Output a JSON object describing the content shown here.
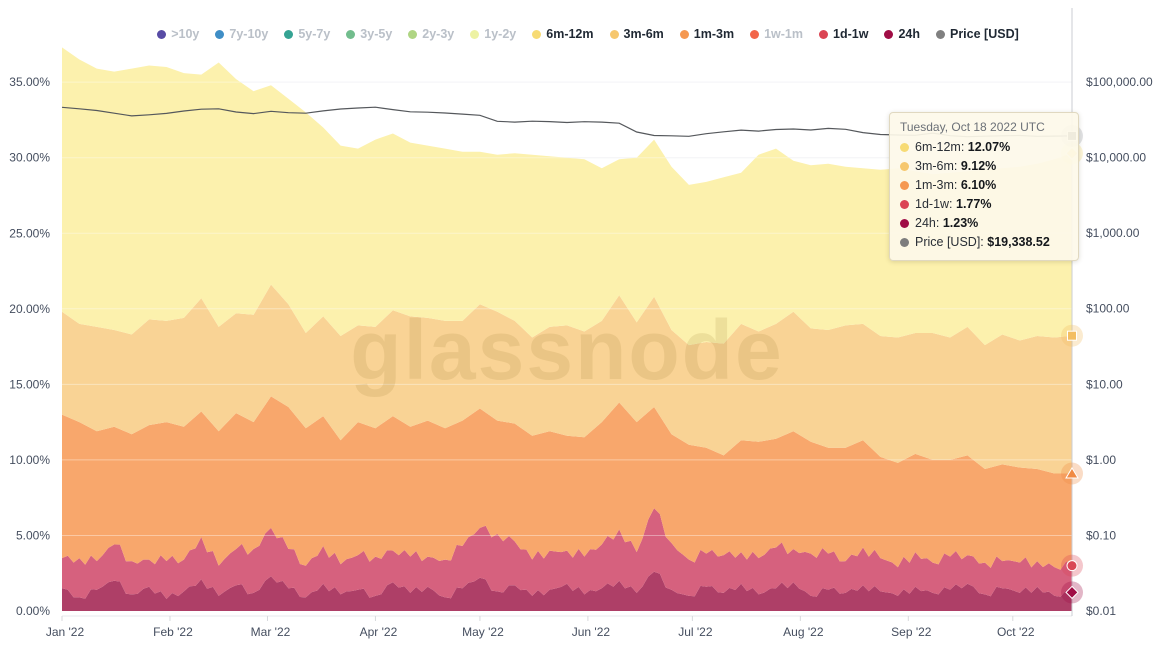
{
  "legend": {
    "items": [
      {
        "label": ">10y",
        "dot": "#584CA5",
        "active": false
      },
      {
        "label": "7y-10y",
        "dot": "#3F8EC6",
        "active": false
      },
      {
        "label": "5y-7y",
        "dot": "#35A393",
        "active": false
      },
      {
        "label": "3y-5y",
        "dot": "#72BD8D",
        "active": false
      },
      {
        "label": "2y-3y",
        "dot": "#AFD583",
        "active": false
      },
      {
        "label": "1y-2y",
        "dot": "#EDF2A3",
        "active": false
      },
      {
        "label": "6m-12m",
        "dot": "#F7DB74",
        "active": true
      },
      {
        "label": "3m-6m",
        "dot": "#F6C76E",
        "active": true
      },
      {
        "label": "1m-3m",
        "dot": "#F59851",
        "active": true
      },
      {
        "label": "1w-1m",
        "dot": "#F2664A",
        "active": false
      },
      {
        "label": "1d-1w",
        "dot": "#DB4453",
        "active": true
      },
      {
        "label": "24h",
        "dot": "#A00D45",
        "active": true
      },
      {
        "label": "Price [USD]",
        "dot": "#808080",
        "active": true
      }
    ]
  },
  "tooltip": {
    "title": "Tuesday, Oct 18 2022 UTC",
    "rows": [
      {
        "label": "6m-12m",
        "value": "12.07%",
        "dot": "#F7DB74"
      },
      {
        "label": "3m-6m",
        "value": "9.12%",
        "dot": "#F6C76E"
      },
      {
        "label": "1m-3m",
        "value": "6.10%",
        "dot": "#F59851"
      },
      {
        "label": "1d-1w",
        "value": "1.77%",
        "dot": "#DB4453"
      },
      {
        "label": "24h",
        "value": "1.23%",
        "dot": "#A00D45"
      },
      {
        "label": "Price [USD]",
        "value": "$19,338.52",
        "dot": "#7D7D7D"
      }
    ]
  },
  "watermark": "glassnode",
  "chart_data": {
    "type": "area",
    "stacked": true,
    "x_unit": "days since Jan 1 2022, through Oct 18 2022",
    "x_days": [
      0,
      5,
      10,
      15,
      20,
      25,
      30,
      35,
      40,
      45,
      50,
      55,
      60,
      65,
      70,
      75,
      80,
      85,
      90,
      95,
      100,
      105,
      110,
      115,
      120,
      125,
      130,
      135,
      140,
      145,
      150,
      155,
      160,
      165,
      170,
      175,
      180,
      185,
      190,
      195,
      200,
      205,
      210,
      215,
      220,
      225,
      230,
      235,
      240,
      245,
      250,
      255,
      260,
      265,
      270,
      275,
      280,
      285,
      290
    ],
    "series": [
      {
        "name": "24h",
        "fill": "#AE3F67",
        "values": [
          1.5,
          0.9,
          1.4,
          2.0,
          1.1,
          1.6,
          0.8,
          1.3,
          2.1,
          1.0,
          1.7,
          1.2,
          2.3,
          1.5,
          0.9,
          1.8,
          1.1,
          1.4,
          1.0,
          1.9,
          1.2,
          1.6,
          0.9,
          1.5,
          2.2,
          1.3,
          1.7,
          1.0,
          1.4,
          1.8,
          1.1,
          1.5,
          2.0,
          1.2,
          2.6,
          1.4,
          1.0,
          1.6,
          1.2,
          1.8,
          1.1,
          1.5,
          1.9,
          1.0,
          1.4,
          1.2,
          1.7,
          1.3,
          1.0,
          1.6,
          1.2,
          1.4,
          1.8,
          1.1,
          1.5,
          1.2,
          1.6,
          1.0,
          1.23
        ]
      },
      {
        "name": "1d-1w",
        "fill": "#D6617E",
        "values": [
          2.0,
          2.6,
          1.9,
          2.4,
          2.2,
          1.8,
          2.5,
          2.1,
          2.8,
          2.0,
          2.4,
          2.9,
          3.2,
          2.6,
          2.1,
          2.5,
          2.0,
          2.3,
          2.6,
          2.1,
          2.4,
          2.0,
          2.5,
          2.8,
          3.3,
          3.8,
          2.9,
          2.4,
          2.6,
          2.2,
          2.5,
          2.9,
          3.4,
          2.7,
          4.2,
          3.1,
          2.4,
          2.2,
          2.5,
          2.1,
          2.4,
          2.7,
          2.2,
          2.8,
          2.4,
          2.1,
          2.5,
          2.2,
          1.9,
          2.3,
          2.0,
          2.2,
          1.9,
          2.1,
          1.8,
          2.0,
          1.7,
          1.9,
          1.77
        ]
      },
      {
        "name": "1m-3m",
        "fill": "#F8A76C",
        "values": [
          9.5,
          9.0,
          8.6,
          7.8,
          8.4,
          8.9,
          9.2,
          8.8,
          8.3,
          8.9,
          9.0,
          8.4,
          8.7,
          9.4,
          9.1,
          8.6,
          8.2,
          8.8,
          8.5,
          8.9,
          8.6,
          9.0,
          8.7,
          8.3,
          7.9,
          7.5,
          7.8,
          8.2,
          7.9,
          7.6,
          7.9,
          8.1,
          8.4,
          8.6,
          6.7,
          7.2,
          7.6,
          7.0,
          6.6,
          7.4,
          7.7,
          7.2,
          7.8,
          7.4,
          7.0,
          7.5,
          7.1,
          6.7,
          6.9,
          6.5,
          6.8,
          6.4,
          6.6,
          6.2,
          6.4,
          6.3,
          6.1,
          6.2,
          6.1
        ]
      },
      {
        "name": "3m-6m",
        "fill": "#F9D395",
        "values": [
          6.8,
          6.5,
          6.9,
          6.4,
          6.6,
          7.0,
          6.7,
          7.2,
          7.5,
          6.9,
          6.6,
          7.1,
          7.4,
          6.8,
          6.3,
          6.6,
          6.9,
          6.4,
          6.7,
          7.0,
          7.3,
          6.8,
          7.1,
          6.6,
          6.9,
          7.2,
          6.8,
          6.5,
          6.9,
          7.3,
          7.0,
          6.7,
          7.1,
          6.6,
          7.3,
          6.9,
          6.6,
          7.0,
          7.4,
          7.7,
          7.3,
          7.6,
          7.9,
          7.5,
          7.8,
          8.1,
          7.7,
          8.0,
          8.3,
          8.0,
          8.4,
          8.1,
          8.5,
          8.2,
          8.6,
          8.4,
          8.8,
          9.0,
          9.12
        ]
      },
      {
        "name": "6m-12m",
        "fill": "#FCF1AD",
        "values": [
          17.5,
          17.5,
          17.1,
          17.1,
          17.6,
          16.8,
          16.8,
          16.2,
          14.8,
          17.5,
          15.5,
          14.8,
          13.2,
          13.6,
          14.6,
          12.5,
          12.6,
          11.7,
          12.4,
          11.7,
          11.5,
          11.4,
          11.4,
          11.2,
          10.1,
          10.4,
          11.1,
          12.1,
          11.3,
          11.1,
          11.4,
          10.1,
          9.0,
          10.9,
          10.4,
          10.8,
          10.6,
          10.6,
          11.0,
          10.0,
          11.7,
          11.6,
          10.0,
          10.8,
          11.0,
          10.5,
          10.3,
          11.0,
          11.2,
          10.7,
          10.5,
          10.9,
          10.3,
          11.6,
          11.0,
          11.5,
          11.4,
          11.8,
          12.07
        ]
      }
    ],
    "price_series": {
      "name": "Price [USD]",
      "color": "#55585C",
      "values": [
        46300,
        44200,
        41900,
        38600,
        35600,
        36800,
        38400,
        41300,
        43600,
        44200,
        40100,
        38200,
        41000,
        39200,
        38700,
        41500,
        43900,
        45300,
        46400,
        43100,
        40300,
        39800,
        38900,
        37600,
        36300,
        30200,
        29500,
        30300,
        29900,
        29100,
        29800,
        29500,
        28500,
        21800,
        19600,
        19400,
        19100,
        20700,
        21900,
        23100,
        22400,
        23500,
        23900,
        23200,
        24300,
        23700,
        21400,
        20200,
        19900,
        19700,
        21100,
        19500,
        18900,
        19200,
        19400,
        19600,
        19100,
        19250,
        19338.52
      ]
    },
    "left_axis": {
      "ticks": [
        {
          "v": 35,
          "label": "35.00%"
        },
        {
          "v": 30,
          "label": "30.00%"
        },
        {
          "v": 25,
          "label": "25.00%"
        },
        {
          "v": 20,
          "label": "20.00%"
        },
        {
          "v": 15,
          "label": "15.00%"
        },
        {
          "v": 10,
          "label": "10.00%"
        },
        {
          "v": 5,
          "label": "5.00%"
        },
        {
          "v": 0,
          "label": "0.00%"
        }
      ]
    },
    "right_axis": {
      "scale": "log",
      "ticks": [
        {
          "p": 100000,
          "label": "$100,000.00"
        },
        {
          "p": 10000,
          "label": "$10,000.00"
        },
        {
          "p": 1000,
          "label": "$1,000.00"
        },
        {
          "p": 100,
          "label": "$100.00"
        },
        {
          "p": 10,
          "label": "$10.00"
        },
        {
          "p": 1,
          "label": "$1.00"
        },
        {
          "p": 0.1,
          "label": "$0.10"
        },
        {
          "p": 0.01,
          "label": "$0.01"
        }
      ]
    },
    "x_axis": {
      "ticks": [
        {
          "day": 0,
          "label": "Jan '22"
        },
        {
          "day": 31,
          "label": "Feb '22"
        },
        {
          "day": 59,
          "label": "Mar '22"
        },
        {
          "day": 90,
          "label": "Apr '22"
        },
        {
          "day": 120,
          "label": "May '22"
        },
        {
          "day": 151,
          "label": "Jun '22"
        },
        {
          "day": 181,
          "label": "Jul '22"
        },
        {
          "day": 212,
          "label": "Aug '22"
        },
        {
          "day": 243,
          "label": "Sep '22"
        },
        {
          "day": 273,
          "label": "Oct '22"
        }
      ]
    },
    "crosshair_day": 290,
    "end_markers": [
      {
        "series": "Price [USD]",
        "shape": "square",
        "color": "#4D4F53",
        "kind": "price",
        "value": 19338.52
      },
      {
        "series": "6m-12m",
        "shape": "diamond",
        "color": "#F5DE7C",
        "kind": "pct",
        "value": 30.29
      },
      {
        "series": "3m-6m",
        "shape": "square",
        "color": "#F3BE62",
        "kind": "pct",
        "value": 18.22
      },
      {
        "series": "1m-3m",
        "shape": "triangle",
        "color": "#F08A43",
        "kind": "pct",
        "value": 9.1
      },
      {
        "series": "1d-1w",
        "shape": "circle",
        "color": "#D94756",
        "kind": "pct",
        "value": 3.0
      },
      {
        "series": "24h",
        "shape": "diamond",
        "color": "#A00D45",
        "kind": "pct",
        "value": 1.23
      }
    ]
  }
}
